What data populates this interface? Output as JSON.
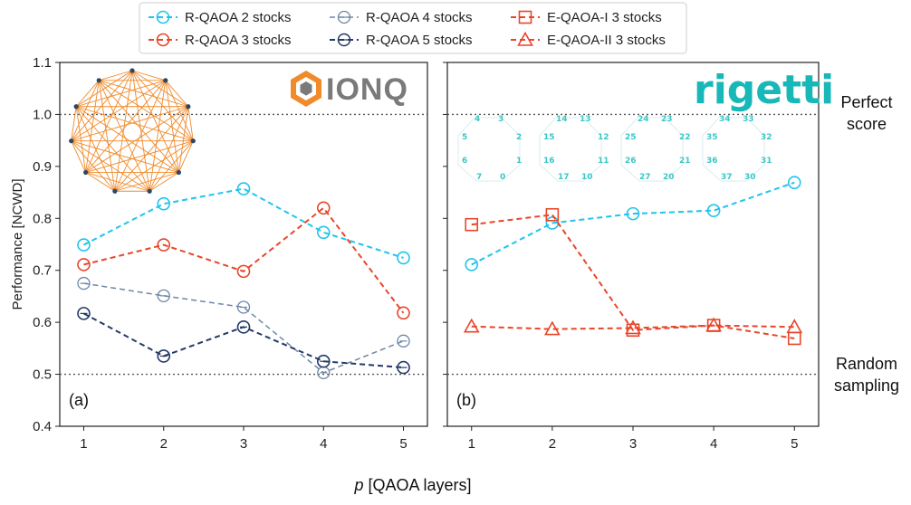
{
  "colors": {
    "r2": "#1fc4ec",
    "r3": "#e8462a",
    "r4": "#6f86a6",
    "r5": "#243a66",
    "e1": "#e8462a",
    "e2": "#e8462a",
    "ionq_logo": "#f08a2a",
    "rigetti": "#18b8b8",
    "ref_line": "#555555"
  },
  "legend": {
    "r2": "R-QAOA 2 stocks",
    "r3": "R-QAOA 3 stocks",
    "r4": "R-QAOA 4 stocks",
    "r5": "R-QAOA 5 stocks",
    "e1": "E-QAOA-I 3 stocks",
    "e2": "E-QAOA-II 3 stocks"
  },
  "labels": {
    "ylabel": "Performance [NCWD]",
    "xlabel_p": "p",
    "xlabel_rest": " [QAOA layers]",
    "panel_a": "(a)",
    "panel_b": "(b)",
    "perfect_1": "Perfect",
    "perfect_2": "score",
    "random_1": "Random",
    "random_2": "sampling",
    "ionq": "IONQ",
    "rigetti": "rigetti"
  },
  "chart_data": [
    {
      "type": "line",
      "panel": "(a)",
      "vendor": "IONQ",
      "x": [
        1,
        2,
        3,
        4,
        5
      ],
      "xlim": [
        0.7,
        5.3
      ],
      "ylim": [
        0.4,
        1.1
      ],
      "yticks": [
        0.4,
        0.5,
        0.6,
        0.7,
        0.8,
        0.9,
        1.0,
        1.1
      ],
      "ytick_labels": [
        "0.4",
        "0.5",
        "0.6",
        "0.7",
        "0.8",
        "0.9",
        "1.0",
        "1.1"
      ],
      "reference_lines": [
        1.0,
        0.5
      ],
      "series": [
        {
          "key": "r2",
          "name": "R-QAOA 2 stocks",
          "marker": "circle",
          "values": [
            0.749,
            0.828,
            0.857,
            0.773,
            0.724
          ]
        },
        {
          "key": "r3",
          "name": "R-QAOA 3 stocks",
          "marker": "circle",
          "values": [
            0.711,
            0.749,
            0.698,
            0.82,
            0.618
          ]
        },
        {
          "key": "r4",
          "name": "R-QAOA 4 stocks",
          "marker": "circle-dash",
          "values": [
            0.675,
            0.651,
            0.629,
            0.503,
            0.564
          ]
        },
        {
          "key": "r5",
          "name": "R-QAOA 5 stocks",
          "marker": "circle-dash",
          "values": [
            0.617,
            0.535,
            0.591,
            0.525,
            0.513
          ]
        }
      ]
    },
    {
      "type": "line",
      "panel": "(b)",
      "vendor": "rigetti",
      "x": [
        1,
        2,
        3,
        4,
        5
      ],
      "xlim": [
        0.7,
        5.3
      ],
      "ylim": [
        0.4,
        1.1
      ],
      "reference_lines": [
        1.0,
        0.5
      ],
      "series": [
        {
          "key": "r2",
          "name": "R-QAOA 2 stocks",
          "marker": "circle",
          "values": [
            0.711,
            0.791,
            0.809,
            0.815,
            0.869
          ]
        },
        {
          "key": "e1",
          "name": "E-QAOA-I 3 stocks",
          "marker": "square",
          "values": [
            0.788,
            0.807,
            0.585,
            0.594,
            0.569
          ]
        },
        {
          "key": "e2",
          "name": "E-QAOA-II 3 stocks",
          "marker": "triangle",
          "values": [
            0.592,
            0.587,
            0.589,
            0.594,
            0.591
          ]
        }
      ]
    }
  ],
  "rigetti_qubits": [
    [
      "4",
      "3",
      "14",
      "13",
      "24",
      "23",
      "34",
      "33"
    ],
    [
      "5",
      "2",
      "15",
      "12",
      "25",
      "22",
      "35",
      "32"
    ],
    [
      "6",
      "1",
      "16",
      "11",
      "26",
      "21",
      "36",
      "31"
    ],
    [
      "7",
      "0",
      "17",
      "10",
      "27",
      "20",
      "37",
      "30"
    ]
  ]
}
